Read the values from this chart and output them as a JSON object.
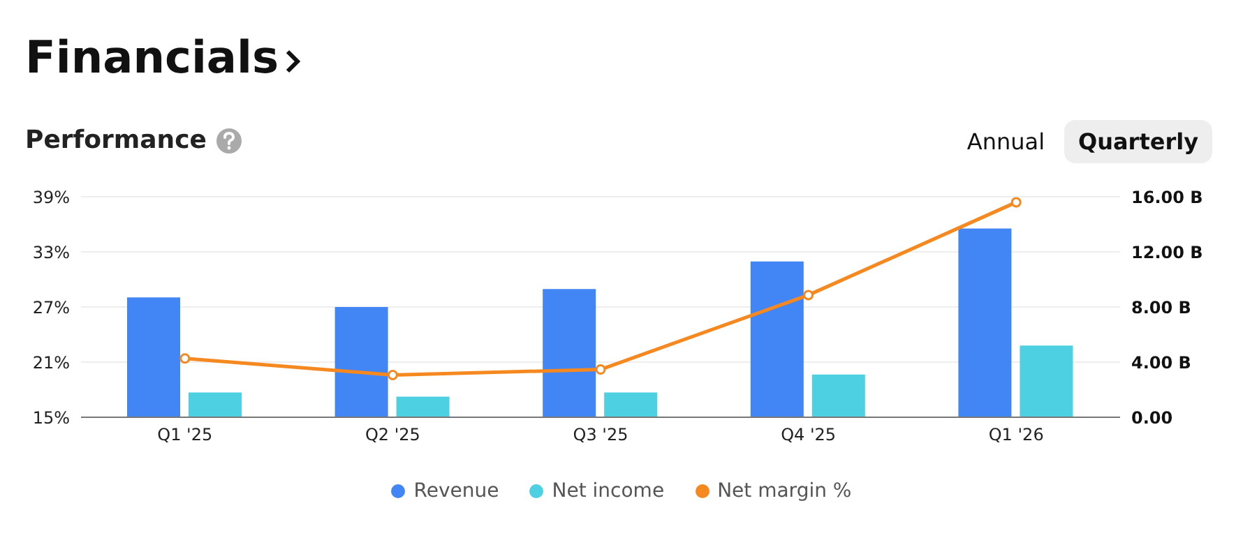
{
  "chart_data": {
    "type": "bar",
    "title": "Financials",
    "subtitle": "Performance",
    "annotations": [
      "Annual",
      "Quarterly"
    ],
    "categories": [
      "Q1 '25",
      "Q2 '25",
      "Q3 '25",
      "Q4 '25",
      "Q1 '26"
    ],
    "series": [
      {
        "name": "Revenue",
        "axis": "y2",
        "color": "#4285f4",
        "values": [
          8.7,
          8.0,
          9.3,
          11.3,
          13.7
        ]
      },
      {
        "name": "Net income",
        "axis": "y2",
        "color": "#4dd0e1",
        "values": [
          1.8,
          1.5,
          1.8,
          3.1,
          5.2
        ]
      },
      {
        "name": "Net margin %",
        "type": "line",
        "color": "#f5891f",
        "values": [
          21.4,
          19.6,
          20.2,
          28.3,
          38.4
        ]
      }
    ],
    "ylim": [
      15,
      39
    ],
    "yticks": [
      {
        "value": 15,
        "label": "15%"
      },
      {
        "value": 21,
        "label": "21%"
      },
      {
        "value": 27,
        "label": "27%"
      },
      {
        "value": 33,
        "label": "33%"
      },
      {
        "value": 39,
        "label": "39%"
      }
    ],
    "y2lim": [
      0,
      16
    ],
    "y2ticks": [
      {
        "value": 0,
        "label": "0.00"
      },
      {
        "value": 4,
        "label": "4.00 B"
      },
      {
        "value": 8,
        "label": "8.00 B"
      },
      {
        "value": 12,
        "label": "12.00 B"
      },
      {
        "value": 16,
        "label": "16.00 B"
      }
    ],
    "grid": "y",
    "legend": "bottom",
    "marker": "circle"
  }
}
